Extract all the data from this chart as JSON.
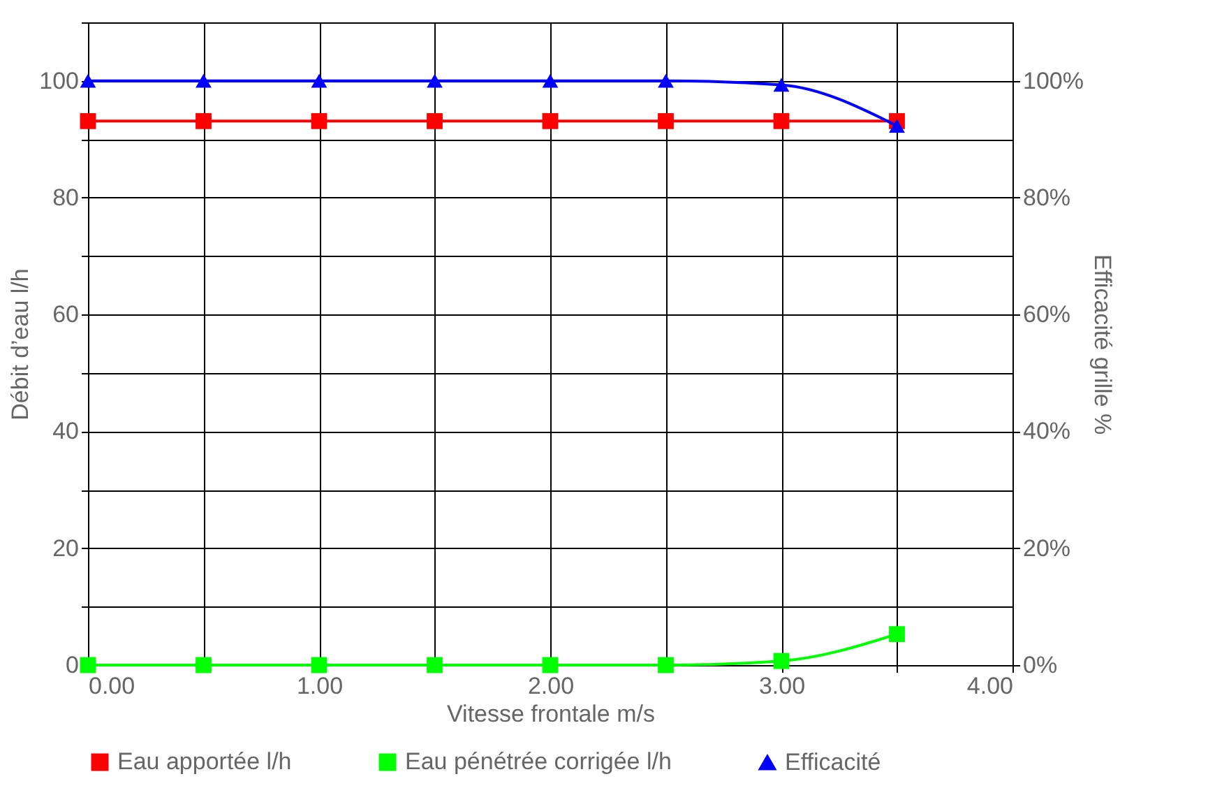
{
  "chart_data": {
    "type": "line",
    "xlabel": "Vitesse frontale m/s",
    "ylabel": "Débit d’eau l/h",
    "y2label": "Efficacité grille %",
    "x": [
      0,
      0.5,
      1,
      1.5,
      2,
      2.5,
      3,
      3.5
    ],
    "xlim": [
      0,
      4
    ],
    "xticks": [
      {
        "value": 0,
        "label": "0.00"
      },
      {
        "value": 0.5,
        "label": null
      },
      {
        "value": 1,
        "label": "1.00"
      },
      {
        "value": 1.5,
        "label": null
      },
      {
        "value": 2,
        "label": "2.00"
      },
      {
        "value": 2.5,
        "label": null
      },
      {
        "value": 3,
        "label": "3.00"
      },
      {
        "value": 3.5,
        "label": null
      },
      {
        "value": 4,
        "label": "4.00"
      }
    ],
    "ylim": [
      0,
      110
    ],
    "yticks": [
      0,
      {
        "value": 10,
        "label": null
      },
      20,
      {
        "value": 30,
        "label": null
      },
      40,
      {
        "value": 50,
        "label": null
      },
      60,
      {
        "value": 70,
        "label": null
      },
      80,
      {
        "value": 90,
        "label": null
      },
      100,
      {
        "value": 110,
        "label": null
      }
    ],
    "y2lim": [
      0,
      110
    ],
    "y2ticks": [
      {
        "value": 0,
        "label": "0%"
      },
      {
        "value": 20,
        "label": "20%"
      },
      {
        "value": 40,
        "label": "40%"
      },
      {
        "value": 60,
        "label": "60%"
      },
      {
        "value": 80,
        "label": "80%"
      },
      {
        "value": 100,
        "label": "100%"
      }
    ],
    "grid": true,
    "legend": "bottom",
    "series": [
      {
        "name": "Eau apportée l/h",
        "color": "#ff0000",
        "marker": "square",
        "values": [
          93.1,
          93.1,
          93.1,
          93.1,
          93.1,
          93.1,
          93.1,
          93.1
        ]
      },
      {
        "name": "Eau pénétrée corrigée l/h",
        "color": "#00ff00",
        "marker": "square",
        "values": [
          0,
          0,
          0,
          0,
          0,
          0,
          0.7,
          5.3
        ]
      },
      {
        "name": "Efficacité",
        "color": "#0000ff",
        "marker": "triangle",
        "axis": "y2",
        "values": [
          100,
          100,
          100,
          100,
          100,
          100,
          99.3,
          92.3
        ]
      }
    ]
  }
}
